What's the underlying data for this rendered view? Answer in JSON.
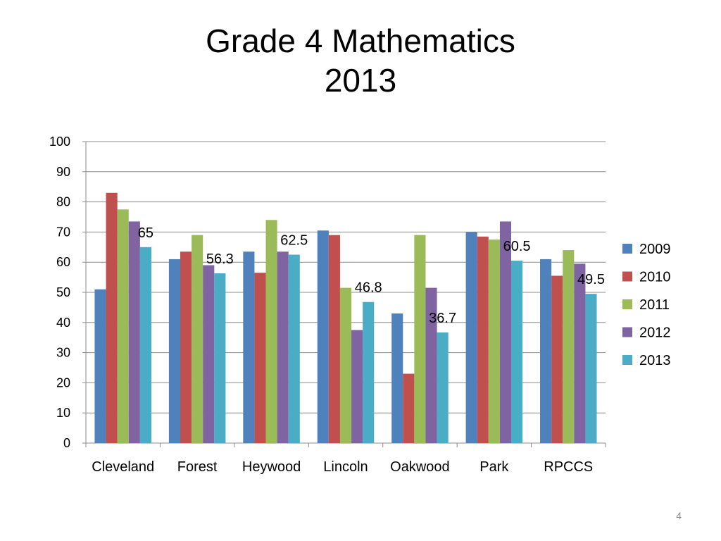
{
  "slide": {
    "title_line1": "Grade 4 Mathematics",
    "title_line2": "2013",
    "page_number": "4"
  },
  "chart_data": {
    "type": "bar",
    "categories": [
      "Cleveland",
      "Forest",
      "Heywood",
      "Lincoln",
      "Oakwood",
      "Park",
      "RPCCS"
    ],
    "series": [
      {
        "name": "2009",
        "color": "#4f81bd",
        "values": [
          51,
          61,
          63.5,
          70.5,
          43,
          70,
          61
        ]
      },
      {
        "name": "2010",
        "color": "#c0504d",
        "values": [
          83,
          63.5,
          56.5,
          69,
          23,
          68.5,
          55.5
        ]
      },
      {
        "name": "2011",
        "color": "#9bbb59",
        "values": [
          77.5,
          69,
          74,
          51.5,
          69,
          67.5,
          64
        ]
      },
      {
        "name": "2012",
        "color": "#8064a2",
        "values": [
          73.5,
          59,
          63.5,
          37.5,
          51.5,
          73.5,
          59.5
        ]
      },
      {
        "name": "2013",
        "color": "#4bacc6",
        "values": [
          65,
          56.3,
          62.5,
          46.8,
          36.7,
          60.5,
          49.5
        ]
      }
    ],
    "data_labels": {
      "series": "2013",
      "labels": [
        "65",
        "56.3",
        "62.5",
        "46.8",
        "36.7",
        "60.5",
        "49.5"
      ]
    },
    "ylim": [
      0,
      100
    ],
    "ytick_step": 10,
    "yticks": [
      "0",
      "10",
      "20",
      "30",
      "40",
      "50",
      "60",
      "70",
      "80",
      "90",
      "100"
    ],
    "grid": true,
    "legend": "right",
    "xlabel": "",
    "ylabel": ""
  }
}
